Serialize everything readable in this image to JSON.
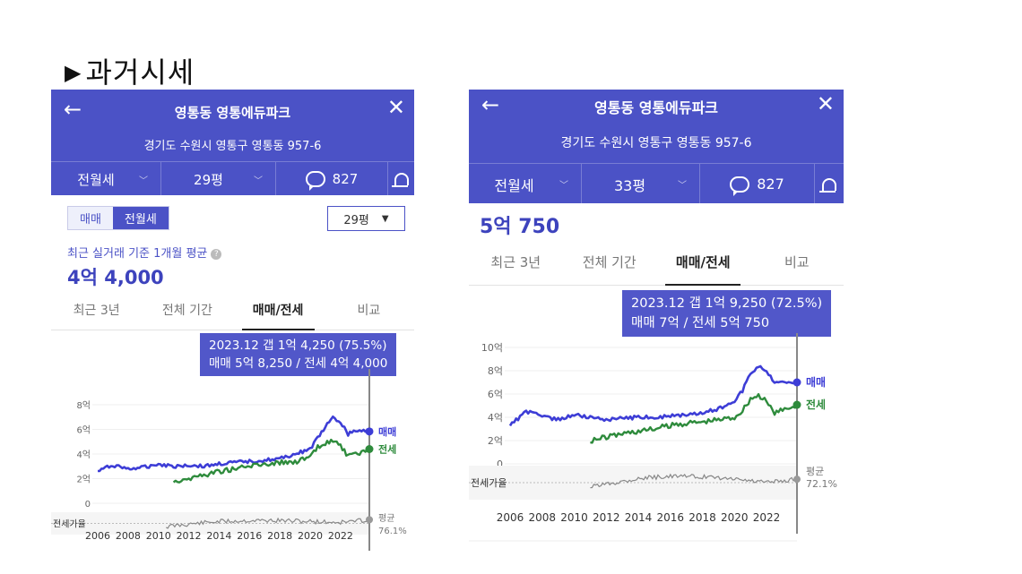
{
  "slide_title": "과거시세",
  "title_marker": "▶",
  "panels": [
    {
      "header": {
        "back_icon": "←",
        "title": "영통동 영통에듀파크",
        "address": "경기도 수원시 영통구 영통동 957-6",
        "close_icon": "✕",
        "toolbar": {
          "trade_type": "전월세",
          "size": "29평",
          "comments": "827"
        }
      },
      "toggle": {
        "sale": "매매",
        "rent": "전월세"
      },
      "size_select": "29평",
      "recent_label": "최근 실거래 기준 1개월 평균",
      "help_icon": "?",
      "price": "4억 4,000",
      "tabs": [
        "최근 3년",
        "전체 기간",
        "매매/전세",
        "비교"
      ],
      "active_tab": 2,
      "tooltip": {
        "line1": "2023.12  갭 1억 4,250 (75.5%)",
        "line2": "매매 5억 8,250 / 전세 4억 4,000"
      }
    },
    {
      "header": {
        "back_icon": "←",
        "title": "영통동 영통에듀파크",
        "address": "경기도 수원시 영통구 영통동 957-6",
        "close_icon": "✕",
        "toolbar": {
          "trade_type": "전월세",
          "size": "33평",
          "comments": "827"
        }
      },
      "price": "5억 750",
      "tabs": [
        "최근 3년",
        "전체 기간",
        "매매/전세",
        "비교"
      ],
      "active_tab": 2,
      "tooltip": {
        "line1": "2023.12  갭 1억 9,250 (72.5%)",
        "line2": "매매 7억 / 전세 5억 750"
      }
    }
  ],
  "chart_data": [
    {
      "type": "line",
      "x": [
        2006,
        2007,
        2008,
        2009,
        2010,
        2011,
        2012,
        2013,
        2014,
        2015,
        2016,
        2017,
        2018,
        2019,
        2020,
        2020.5,
        2021,
        2021.5,
        2022,
        2022.5,
        2023,
        2023.9
      ],
      "series": [
        {
          "name": "매매",
          "color": "#3d3dd6",
          "values": [
            2.6,
            3.1,
            2.8,
            2.9,
            3.2,
            3.0,
            3.1,
            3.0,
            3.2,
            3.3,
            3.4,
            3.5,
            3.6,
            4.0,
            4.4,
            5.3,
            6.2,
            6.9,
            6.6,
            5.6,
            5.9,
            5.83
          ]
        },
        {
          "name": "전세",
          "color": "#2e8b3c",
          "values": [
            null,
            null,
            null,
            null,
            null,
            1.8,
            2.0,
            2.3,
            2.6,
            2.8,
            3.0,
            3.2,
            3.3,
            3.4,
            3.7,
            4.5,
            4.8,
            5.2,
            4.6,
            3.8,
            3.9,
            4.4
          ]
        }
      ],
      "ratio_series": {
        "label": "전세가율",
        "x": [
          2010.5,
          2012,
          2014,
          2016,
          2018,
          2020,
          2022,
          2023.9
        ],
        "values": [
          0.6,
          0.66,
          0.72,
          0.74,
          0.74,
          0.72,
          0.7,
          0.76
        ]
      },
      "y_ticks": [
        "8억",
        "6억",
        "4억",
        "2억",
        "0"
      ],
      "ylim": [
        0,
        8
      ],
      "x_ticks": [
        "2006",
        "2008",
        "2010",
        "2012",
        "2014",
        "2016",
        "2018",
        "2020",
        "2022"
      ],
      "avg_label": "평균",
      "avg_value": "76.1%"
    },
    {
      "type": "line",
      "x": [
        2006,
        2007,
        2008,
        2009,
        2010,
        2011,
        2012,
        2013,
        2014,
        2015,
        2016,
        2017,
        2018,
        2019,
        2020,
        2020.5,
        2021,
        2021.5,
        2022,
        2022.5,
        2023,
        2023.9
      ],
      "series": [
        {
          "name": "매매",
          "color": "#3d3dd6",
          "values": [
            3.3,
            4.5,
            4.1,
            3.8,
            4.2,
            4.0,
            3.8,
            3.9,
            4.0,
            4.0,
            4.1,
            4.2,
            4.4,
            4.7,
            5.3,
            6.3,
            7.8,
            8.4,
            8.0,
            6.9,
            7.1,
            7.0
          ]
        },
        {
          "name": "전세",
          "color": "#2e8b3c",
          "values": [
            null,
            null,
            null,
            null,
            null,
            2.0,
            2.3,
            2.6,
            2.8,
            3.0,
            3.3,
            3.5,
            3.6,
            3.8,
            4.0,
            4.6,
            5.6,
            5.9,
            5.3,
            4.4,
            4.6,
            5.075
          ]
        }
      ],
      "ratio_series": {
        "label": "전세가율",
        "x": [
          2011,
          2012,
          2014,
          2016,
          2018,
          2020,
          2022,
          2023.9
        ],
        "values": [
          0.62,
          0.66,
          0.73,
          0.76,
          0.75,
          0.72,
          0.68,
          0.72
        ]
      },
      "y_ticks": [
        "10억",
        "8억",
        "6억",
        "4억",
        "2억",
        "0"
      ],
      "ylim": [
        0,
        10
      ],
      "x_ticks": [
        "2006",
        "2008",
        "2010",
        "2012",
        "2014",
        "2016",
        "2018",
        "2020",
        "2022"
      ],
      "avg_label": "평균",
      "avg_value": "72.1%"
    }
  ]
}
